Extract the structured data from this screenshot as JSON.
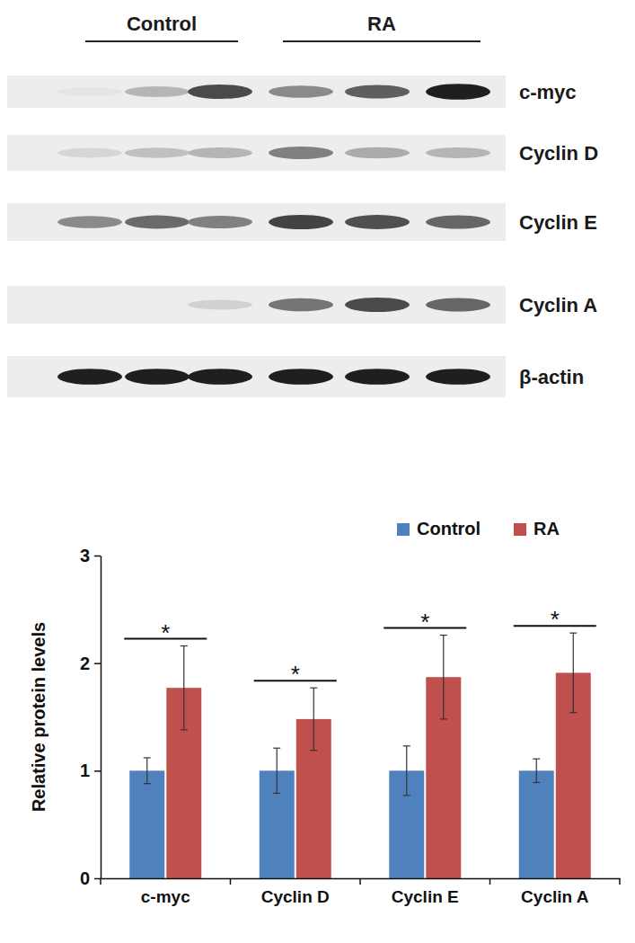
{
  "blot": {
    "groups": [
      "Control",
      "RA"
    ],
    "rows": [
      "c-myc",
      "Cyclin D",
      "Cyclin E",
      "Cyclin A",
      "β-actin"
    ]
  },
  "chart_data": {
    "type": "bar",
    "y_label": "Relative protein levels",
    "categories": [
      "c-myc",
      "Cyclin D",
      "Cyclin E",
      "Cyclin A"
    ],
    "series": [
      {
        "name": "Control",
        "color": "#4f81bd",
        "values": [
          1,
          1,
          1,
          1
        ],
        "errors": [
          0.12,
          0.21,
          0.23,
          0.11
        ]
      },
      {
        "name": "RA",
        "color": "#c0504d",
        "values": [
          1.77,
          1.48,
          1.87,
          1.91
        ],
        "errors": [
          0.39,
          0.29,
          0.39,
          0.37
        ]
      }
    ],
    "annotations": [
      {
        "text": "*",
        "category": "c-myc"
      },
      {
        "text": "*",
        "category": "Cyclin D"
      },
      {
        "text": "*",
        "category": "Cyclin E"
      },
      {
        "text": "*",
        "category": "Cyclin A"
      }
    ],
    "ylim": [
      0,
      3
    ],
    "yticks": [
      0,
      1,
      2,
      3
    ],
    "grid": false,
    "legend": "top-right"
  }
}
